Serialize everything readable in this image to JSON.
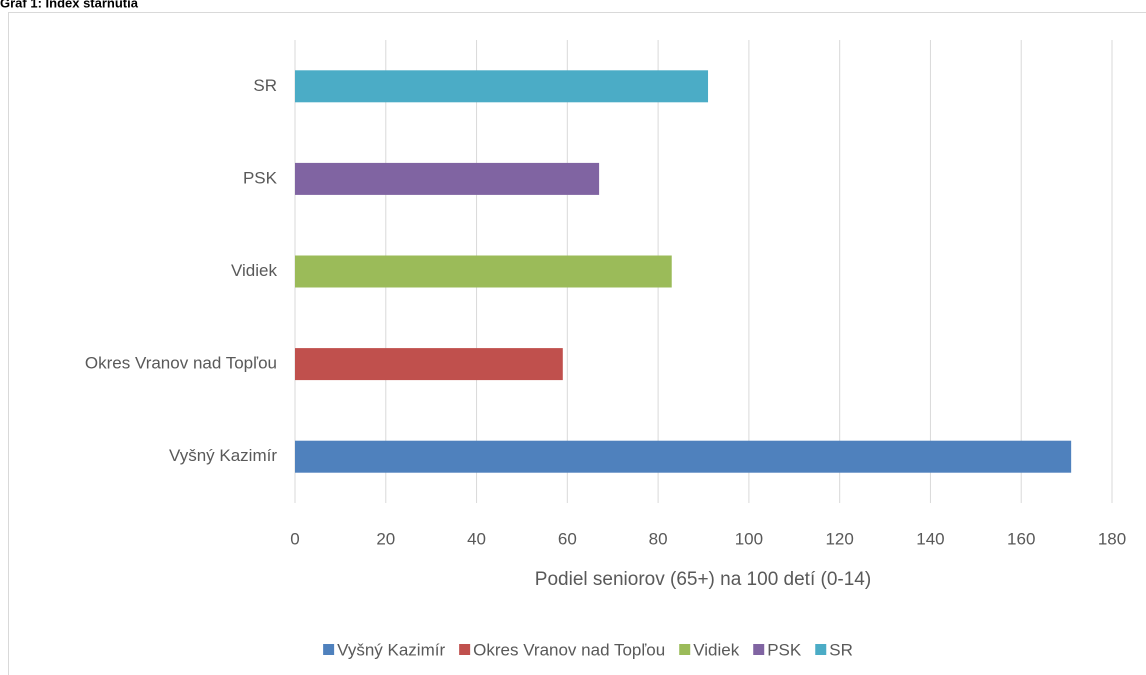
{
  "chart_data": {
    "type": "bar",
    "orientation": "horizontal",
    "title": "Graf 1: Index starnutia",
    "categories": [
      "Vyšný Kazimír",
      "Okres Vranov nad Topľou",
      "Vidiek",
      "PSK",
      "SR"
    ],
    "values": [
      171,
      59,
      83,
      67,
      91
    ],
    "colors": [
      "#4f81bd",
      "#c0504d",
      "#9bbb59",
      "#8064a2",
      "#4bacc6"
    ],
    "xlabel": "Podiel seniorov (65+) na 100 detí (0-14)",
    "xlim": [
      0,
      180
    ],
    "xticks": [
      0,
      20,
      40,
      60,
      80,
      100,
      120,
      140,
      160,
      180
    ],
    "grid": true,
    "legend": "bottom"
  }
}
